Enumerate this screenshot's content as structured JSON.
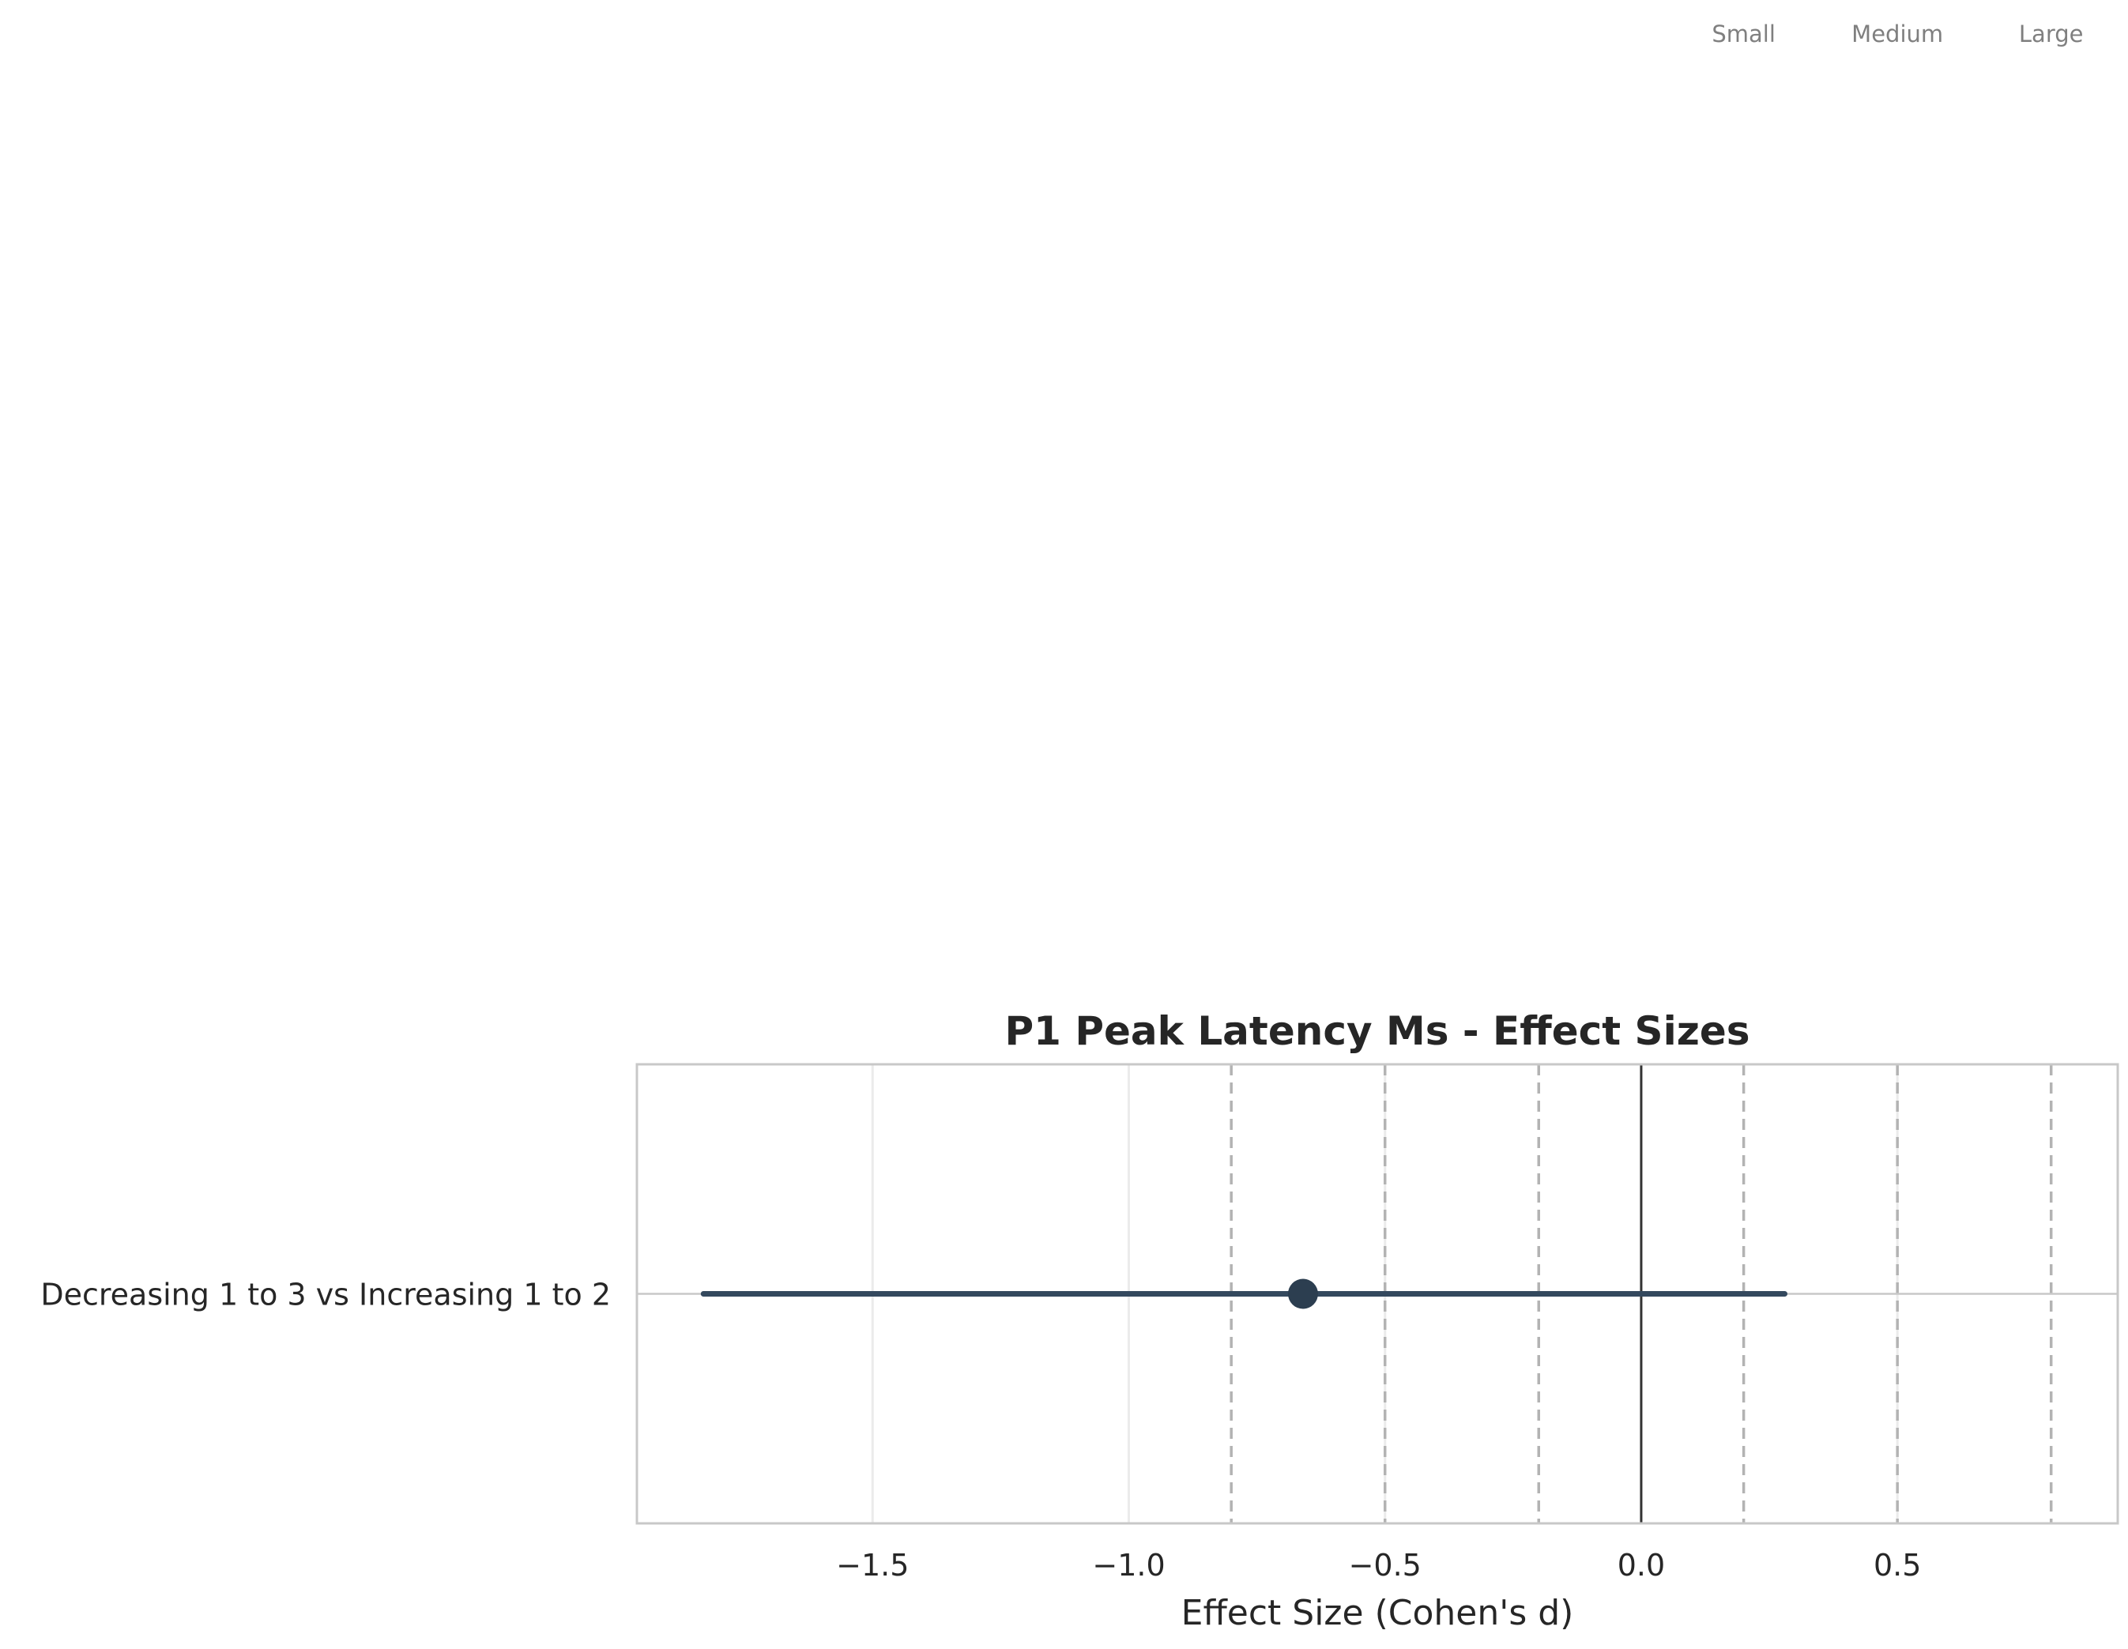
{
  "chart_data": {
    "type": "forest",
    "title": "P1 Peak Latency Ms - Effect Sizes",
    "xlabel": "Effect Size (Cohen's d)",
    "ylabel": "",
    "xlim": [
      -1.96,
      0.93
    ],
    "xticks": [
      -1.5,
      -1.0,
      -0.5,
      0.0,
      0.5
    ],
    "xtick_labels": [
      "−1.5",
      "−1.0",
      "−0.5",
      "0.0",
      "0.5"
    ],
    "grid": true,
    "reference_line": 0.0,
    "threshold_lines": [
      -0.8,
      -0.5,
      -0.2,
      0.2,
      0.5,
      0.8
    ],
    "threshold_labels": [
      {
        "value": 0.2,
        "label": "Small"
      },
      {
        "value": 0.5,
        "label": "Medium"
      },
      {
        "value": 0.8,
        "label": "Large"
      }
    ],
    "rows": [
      {
        "label": "Decreasing 1 to 3 vs Increasing 1 to 2",
        "estimate": -0.66,
        "ci_low": -1.83,
        "ci_high": 0.28
      }
    ],
    "colors": {
      "marker": "#2c3e50",
      "ci_line": "#34495e",
      "zero_line": "#333333",
      "threshold_line": "#b3b3b3",
      "grid": "#ebebeb",
      "frame": "#c8c8c8",
      "text": "#262626",
      "threshold_text": "#7f7f7f"
    }
  }
}
